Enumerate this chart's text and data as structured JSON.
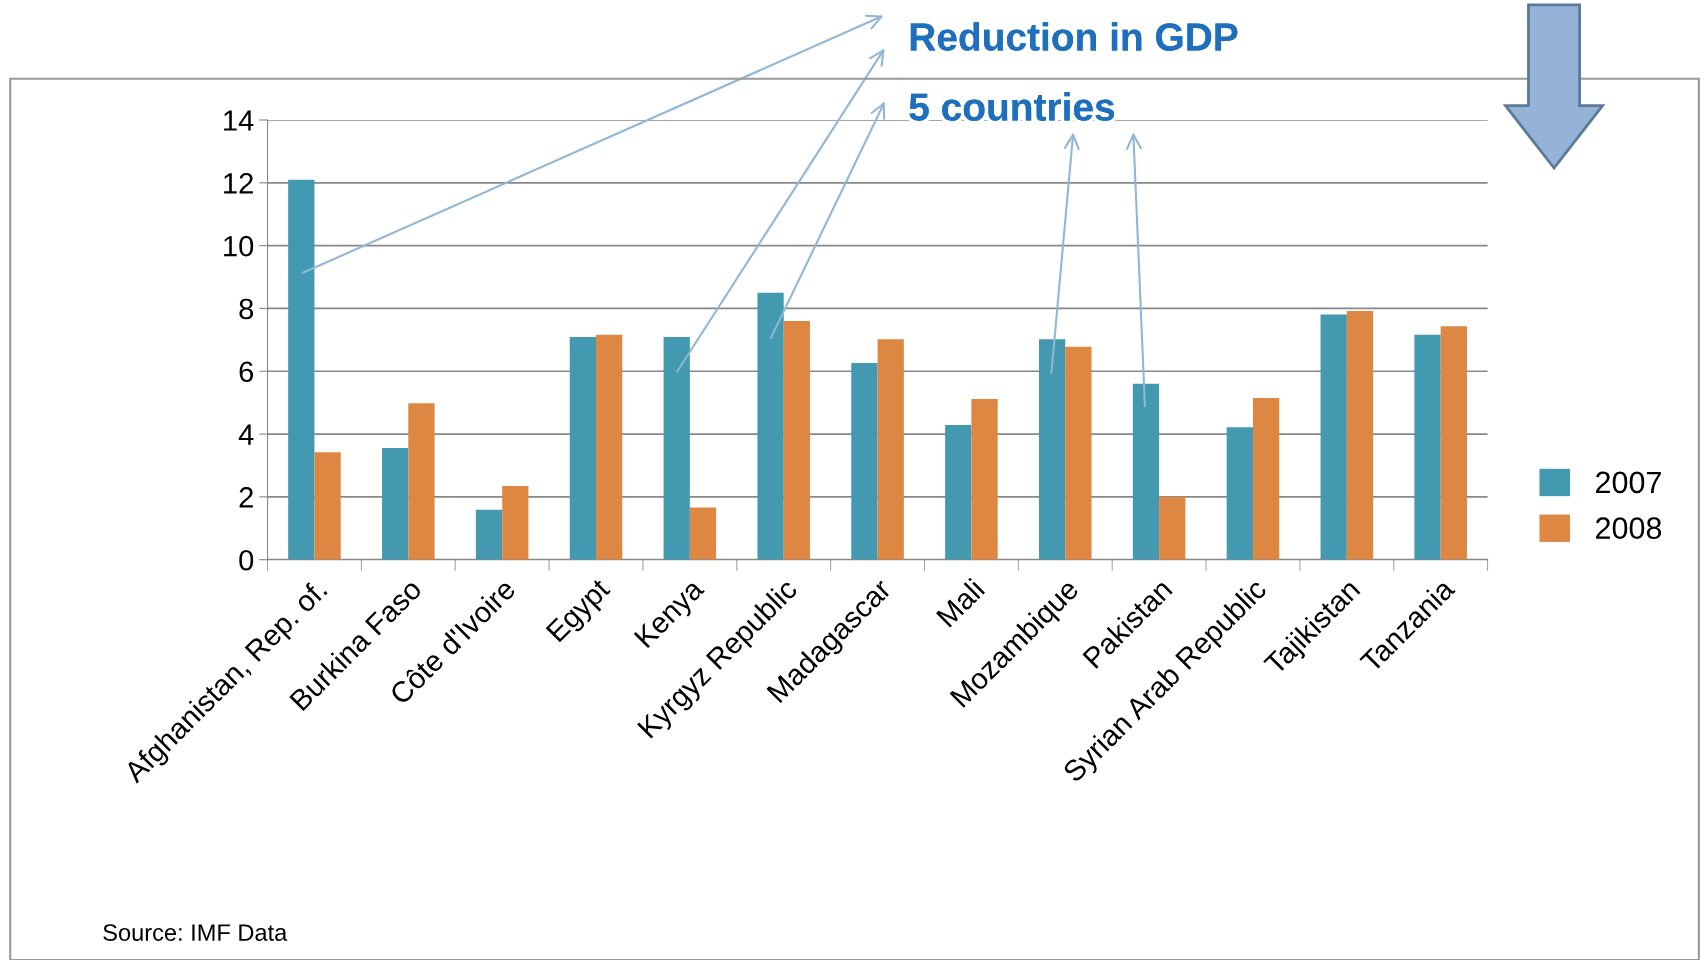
{
  "chart_data": {
    "type": "bar",
    "title": "Reduction in GDP",
    "subtitle": "5 countries",
    "categories": [
      "Afghanistan, Rep. of.",
      "Burkina Faso",
      "Côte d'Ivoire",
      "Egypt",
      "Kenya",
      "Kyrgyz Republic",
      "Madagascar",
      "Mali",
      "Mozambique",
      "Pakistan",
      "Syrian Arab Republic",
      "Tajikistan",
      "Tanzania"
    ],
    "series": [
      {
        "name": "2007",
        "color": "#4299b0",
        "values": [
          12.1,
          3.56,
          1.59,
          7.09,
          7.09,
          8.5,
          6.26,
          4.29,
          7.02,
          5.6,
          4.22,
          7.81,
          7.16
        ]
      },
      {
        "name": "2008",
        "color": "#dd8742",
        "values": [
          3.42,
          4.98,
          2.35,
          7.16,
          1.66,
          7.6,
          7.02,
          5.12,
          6.78,
          2.0,
          5.15,
          7.92,
          7.43
        ]
      }
    ],
    "ylim": [
      0,
      14
    ],
    "yticks": [
      0,
      2,
      4,
      6,
      8,
      10,
      12,
      14
    ],
    "grid": "y",
    "legend": "right",
    "annotations": [
      "Source: IMF Data"
    ]
  }
}
